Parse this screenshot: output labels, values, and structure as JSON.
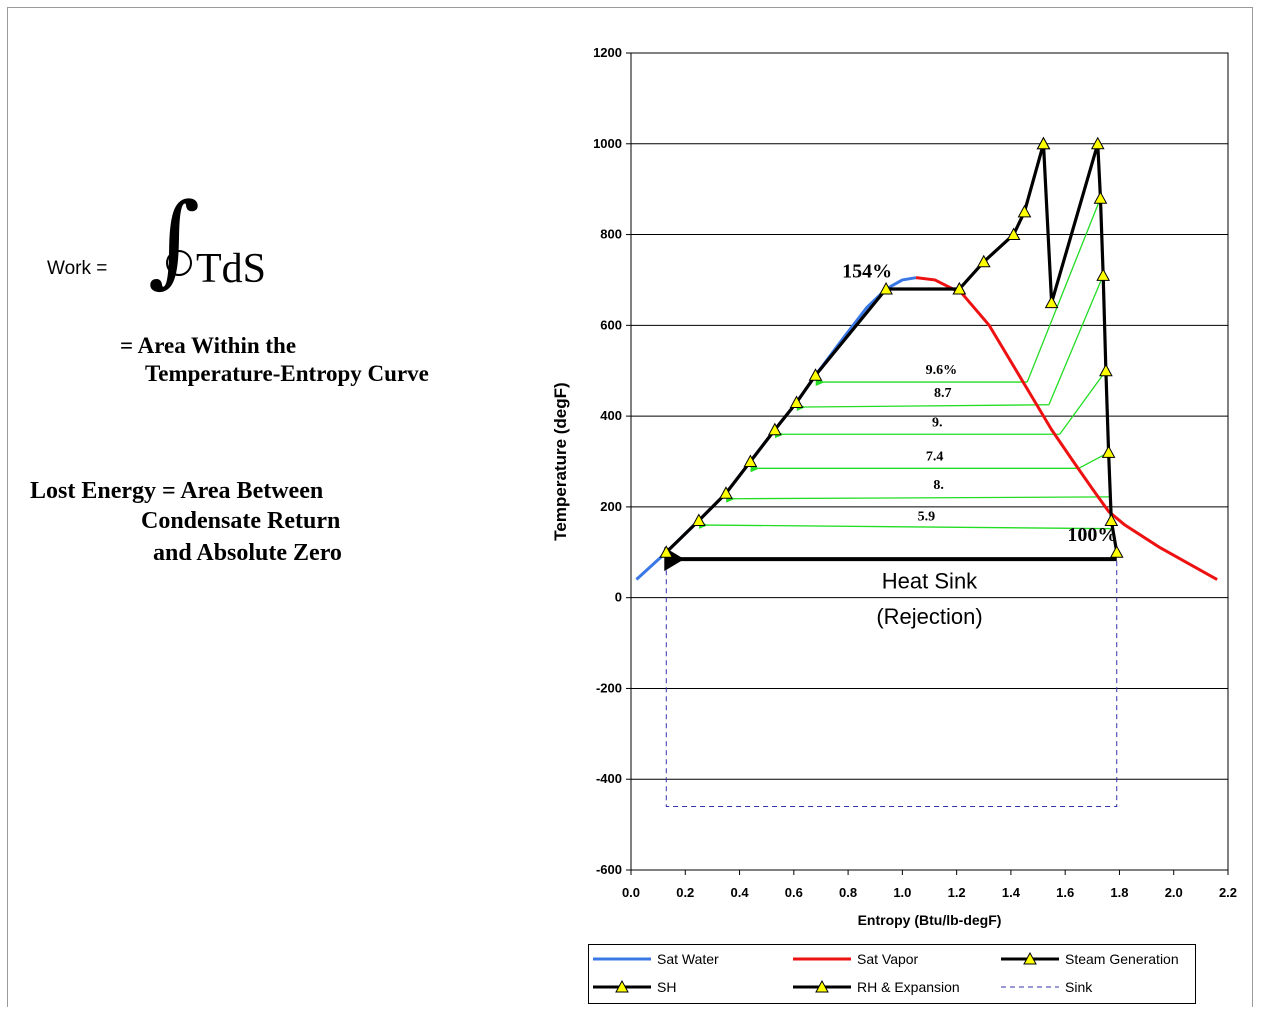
{
  "equation": {
    "work_label": "Work =",
    "tds": "TdS",
    "area_line1": "= Area Within the",
    "area_line2": "Temperature-Entropy Curve",
    "lost_line1": "Lost Energy = Area Between",
    "lost_line2": "Condensate Return",
    "lost_line3": "and Absolute Zero"
  },
  "colors": {
    "sat_water": "#3a78e6",
    "sat_vapor": "#ee1111",
    "cycle": "#000000",
    "regen": "#22dd22",
    "marker_fill": "#ffff00",
    "sink": "#3333aa"
  },
  "chart_data": {
    "type": "line",
    "xlabel": "Entropy (Btu/lb-degF)",
    "ylabel": "Temperature (degF)",
    "xlim": [
      0,
      2.2
    ],
    "ylim": [
      -600,
      1200
    ],
    "xticks": [
      "0.0",
      "0.2",
      "0.4",
      "0.6",
      "0.8",
      "1.0",
      "1.2",
      "1.4",
      "1.6",
      "1.8",
      "2.0",
      "2.2"
    ],
    "yticks": [
      "-600",
      "-400",
      "-200",
      "0",
      "200",
      "400",
      "600",
      "800",
      "1000",
      "1200"
    ],
    "grid": "horizontal",
    "legend_position": "bottom",
    "series": [
      {
        "name": "Sat Water",
        "color": "#3a78e6",
        "marker": "none",
        "x": [
          0.02,
          0.13,
          0.25,
          0.35,
          0.44,
          0.53,
          0.61,
          0.68,
          0.78,
          0.87,
          0.94,
          1.0,
          1.05
        ],
        "y": [
          40,
          100,
          170,
          230,
          300,
          370,
          430,
          490,
          570,
          640,
          680,
          700,
          705
        ]
      },
      {
        "name": "Sat Vapor",
        "color": "#ee1111",
        "marker": "none",
        "x": [
          1.05,
          1.12,
          1.22,
          1.32,
          1.4,
          1.47,
          1.55,
          1.63,
          1.7,
          1.76,
          1.82,
          1.95,
          2.16
        ],
        "y": [
          705,
          700,
          670,
          600,
          520,
          450,
          370,
          300,
          240,
          190,
          160,
          110,
          40
        ]
      },
      {
        "name": "Steam Generation",
        "color": "#000000",
        "marker": "triangle",
        "x": [
          0.13,
          0.25,
          0.35,
          0.44,
          0.53,
          0.61,
          0.68,
          0.94,
          1.21
        ],
        "y": [
          100,
          170,
          230,
          300,
          370,
          430,
          490,
          680,
          680
        ]
      },
      {
        "name": "SH",
        "color": "#000000",
        "marker": "triangle",
        "x": [
          1.21,
          1.3,
          1.41,
          1.45,
          1.52
        ],
        "y": [
          680,
          740,
          800,
          850,
          1000
        ]
      },
      {
        "name": "RH & Expansion",
        "color": "#000000",
        "marker": "triangle",
        "x": [
          1.52,
          1.55,
          1.72,
          1.73,
          1.74,
          1.75,
          1.76,
          1.77,
          1.79
        ],
        "y": [
          1000,
          650,
          1000,
          880,
          710,
          500,
          320,
          170,
          100
        ]
      },
      {
        "name": "Sink",
        "color": "#3333aa",
        "marker": "none",
        "dashed": true,
        "x": [
          0.13,
          0.13,
          1.79,
          1.79
        ],
        "y": [
          100,
          -460,
          -460,
          100
        ]
      }
    ],
    "regen_lines": [
      {
        "label": "9.6%",
        "x_from": 1.46,
        "y_from": 475,
        "x_to": 0.68,
        "y_to": 475,
        "source_x": 1.73,
        "source_y": 880
      },
      {
        "label": "8.7",
        "x_from": 1.54,
        "y_from": 425,
        "x_to": 0.61,
        "y_to": 420,
        "source_x": 1.74,
        "source_y": 710
      },
      {
        "label": "9.",
        "x_from": 1.58,
        "y_from": 360,
        "x_to": 0.53,
        "y_to": 360,
        "source_x": 1.75,
        "source_y": 500
      },
      {
        "label": "7.4",
        "x_from": 1.65,
        "y_from": 285,
        "x_to": 0.44,
        "y_to": 285,
        "source_x": 1.76,
        "source_y": 320
      },
      {
        "label": "8.",
        "x_from": 1.77,
        "y_from": 222,
        "x_to": 0.35,
        "y_to": 218,
        "source_x": 1.77,
        "source_y": 222
      },
      {
        "label": "5.9",
        "x_from": 1.78,
        "y_from": 152,
        "x_to": 0.25,
        "y_to": 160,
        "source_x": 1.78,
        "source_y": 152
      }
    ],
    "heat_sink_arrow": {
      "x_from": 1.79,
      "y_from": 85,
      "x_to": 0.13,
      "y_to": 85
    },
    "annotations": [
      {
        "text": "154%",
        "x": 0.87,
        "y": 705
      },
      {
        "text": "100%",
        "x": 1.7,
        "y": 125
      },
      {
        "text": "Heat Sink",
        "x": 1.1,
        "y": 20
      },
      {
        "text": "(Rejection)",
        "x": 1.1,
        "y": -58
      }
    ]
  },
  "legend": [
    {
      "name": "Sat Water",
      "color": "#3a78e6",
      "marker": false,
      "dashed": false
    },
    {
      "name": "Sat Vapor",
      "color": "#ee1111",
      "marker": false,
      "dashed": false
    },
    {
      "name": "Steam Generation",
      "color": "#000000",
      "marker": true,
      "dashed": false
    },
    {
      "name": "SH",
      "color": "#000000",
      "marker": true,
      "dashed": false
    },
    {
      "name": "RH & Expansion",
      "color": "#000000",
      "marker": true,
      "dashed": false
    },
    {
      "name": "Sink",
      "color": "#3333aa",
      "marker": false,
      "dashed": true
    }
  ]
}
